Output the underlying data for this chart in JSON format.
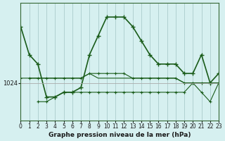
{
  "bg_color": "#d6f0f0",
  "line_color": "#1a5c1a",
  "grid_color": "#aacccc",
  "xlabel": "Graphe pression niveau de la mer (hPa)",
  "ylim": [
    1016,
    1041
  ],
  "xlim": [
    0,
    23
  ],
  "yticks": [
    1024
  ],
  "xticks": [
    0,
    1,
    2,
    3,
    4,
    5,
    6,
    7,
    8,
    9,
    10,
    11,
    12,
    13,
    14,
    15,
    16,
    17,
    18,
    19,
    20,
    21,
    22,
    23
  ],
  "series": {
    "main": [
      1036,
      1030,
      1028,
      1021,
      1021,
      1022,
      1022,
      1023,
      1030,
      1034,
      1038,
      1038,
      1038,
      1036,
      1033,
      1030,
      1028,
      1028,
      1028,
      1026,
      1026,
      1030,
      1024,
      1026
    ],
    "line_a": [
      1025,
      1025,
      1025,
      1025,
      1025,
      1025,
      1025,
      1025,
      1026,
      1026,
      1026,
      1026,
      1026,
      1025,
      1025,
      1025,
      1025,
      1025,
      1025,
      1024,
      1024,
      1024,
      1024,
      1024
    ],
    "line_b": [
      null,
      null,
      1020,
      1020,
      1021,
      1022,
      1022,
      1022,
      1022,
      1022,
      1022,
      1022,
      1022,
      1022,
      1022,
      1022,
      1022,
      1022,
      1022,
      1022,
      1024,
      1022,
      1020,
      1024
    ],
    "line_c": [
      null,
      1025,
      null,
      1025,
      1025,
      1025,
      1025,
      1025,
      1026,
      1025,
      1025,
      1025,
      1025,
      1025,
      1025,
      1025,
      1025,
      1025,
      1025,
      1024,
      1024,
      1024,
      1024,
      1024
    ]
  }
}
